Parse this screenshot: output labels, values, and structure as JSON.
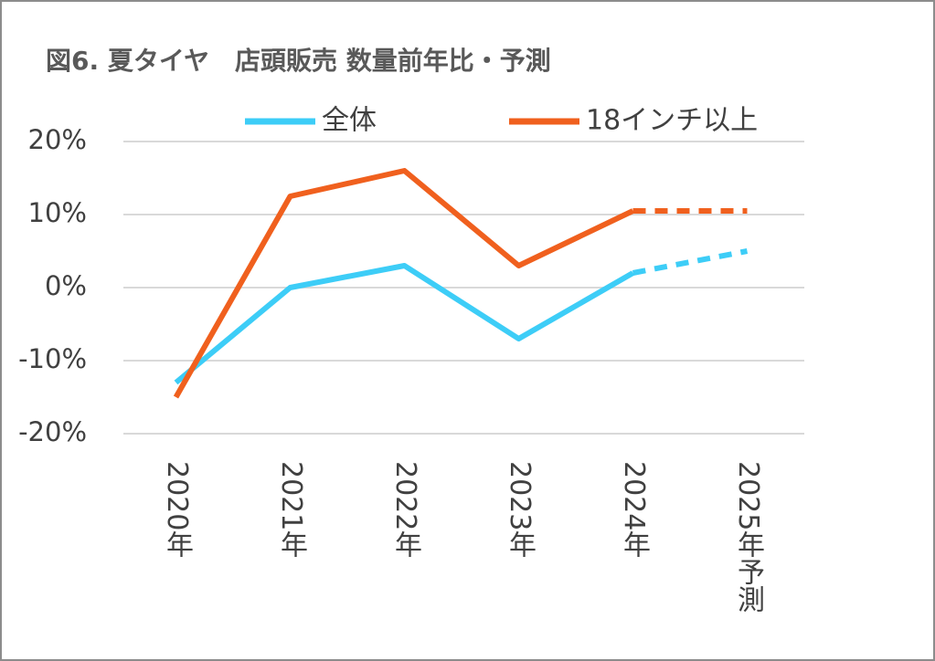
{
  "chart_data": {
    "type": "line",
    "title": "図6. 夏タイヤ　店頭販売 数量前年比・予測",
    "categories": [
      "2020年",
      "2021年",
      "2022年",
      "2023年",
      "2024年",
      "2025年予測"
    ],
    "series": [
      {
        "name": "全体",
        "color": "#3dcdf7",
        "values": [
          -13,
          0,
          3,
          -7,
          2,
          5
        ]
      },
      {
        "name": "18インチ以上",
        "color": "#f0601e",
        "values": [
          -15,
          12.5,
          16,
          3,
          10.5,
          10.5
        ]
      }
    ],
    "forecast_from_index": 4,
    "ylim": [
      -20,
      20
    ],
    "yticks": [
      {
        "value": -20,
        "label": "-20%"
      },
      {
        "value": -10,
        "label": "-10%"
      },
      {
        "value": 0,
        "label": "0%"
      },
      {
        "value": 10,
        "label": "10%"
      },
      {
        "value": 20,
        "label": "20%"
      }
    ],
    "grid": true,
    "legend": "top"
  }
}
